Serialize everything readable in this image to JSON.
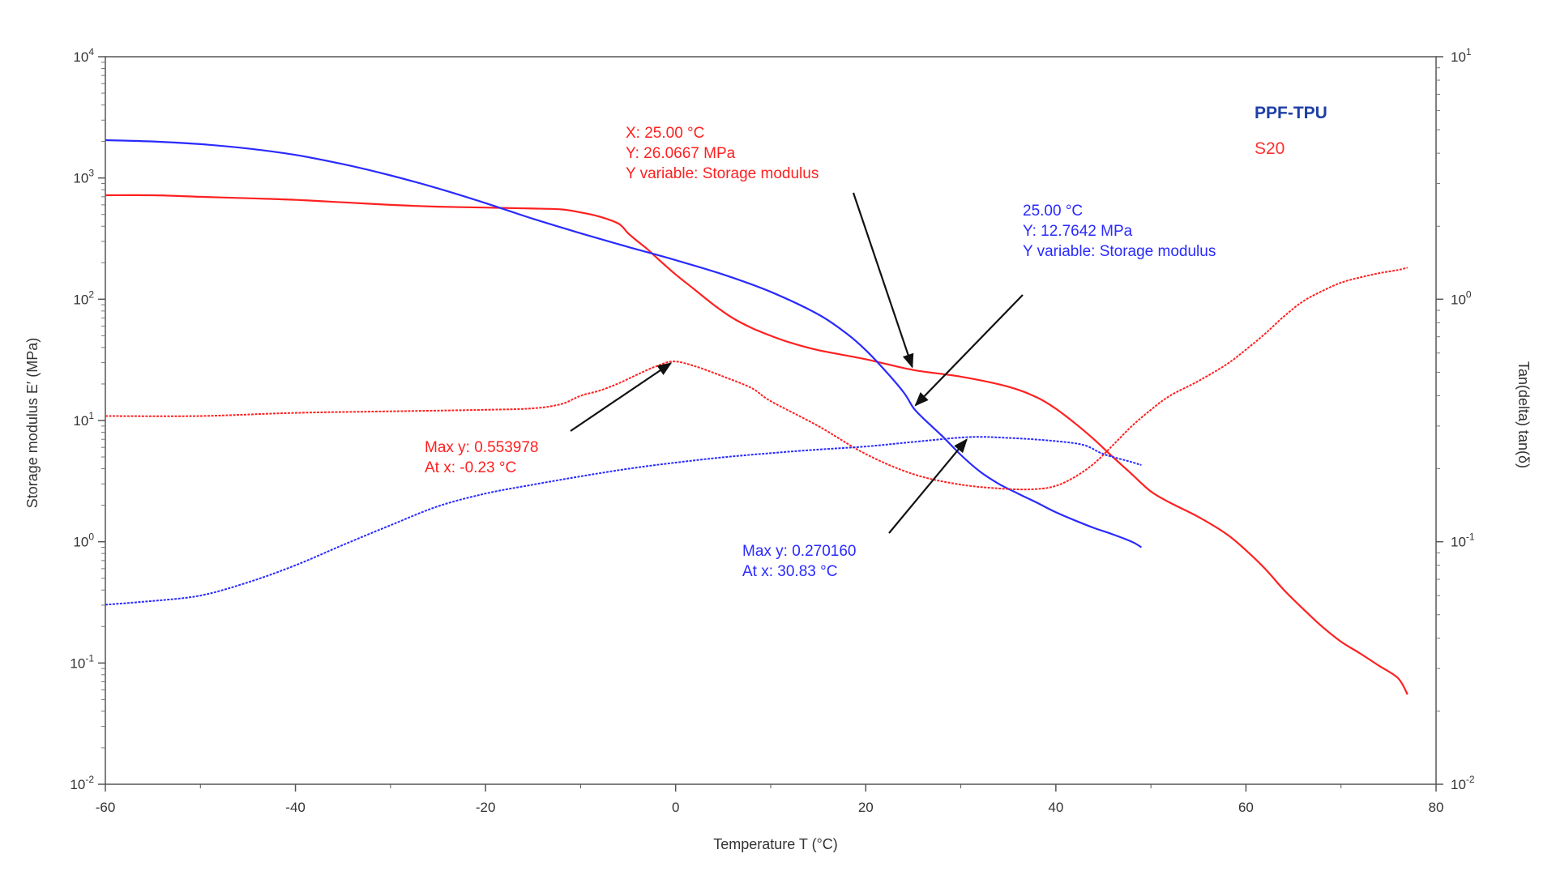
{
  "chart_data": {
    "type": "line",
    "title": "",
    "xlabel": "Temperature T (°C)",
    "ylabel_left": "Storage modulus E′ (MPa)",
    "ylabel_right": "Tan(delta) tan(δ)",
    "xlim": [
      -60,
      80
    ],
    "ylim_left": [
      0.01,
      10000
    ],
    "ylim_right": [
      0.01,
      10
    ],
    "yscale_left": "log",
    "yscale_right": "log",
    "grid": false,
    "x_ticks": [
      "-60",
      "-40",
      "-20",
      "0",
      "20",
      "40",
      "60",
      "80"
    ],
    "y_left_ticks": [
      {
        "base": "10",
        "exp": "-2",
        "value": 0.01
      },
      {
        "base": "10",
        "exp": "-1",
        "value": 0.1
      },
      {
        "base": "10",
        "exp": "0",
        "value": 1
      },
      {
        "base": "10",
        "exp": "1",
        "value": 10
      },
      {
        "base": "10",
        "exp": "2",
        "value": 100
      },
      {
        "base": "10",
        "exp": "3",
        "value": 1000
      },
      {
        "base": "10",
        "exp": "4",
        "value": 10000
      }
    ],
    "y_right_ticks": [
      {
        "base": "10",
        "exp": "-2",
        "value": 0.01
      },
      {
        "base": "10",
        "exp": "-1",
        "value": 0.1
      },
      {
        "base": "10",
        "exp": "0",
        "value": 1
      },
      {
        "base": "10",
        "exp": "1",
        "value": 10
      }
    ],
    "legend": {
      "placement": "top-right",
      "entries": [
        {
          "label": "PPF-TPU",
          "color": "#1f3fa6"
        },
        {
          "label": "S20",
          "color": "#ff3030"
        }
      ]
    },
    "series": [
      {
        "id": "s20-storage",
        "axis": "left",
        "color": "#ff2020",
        "style": "solid",
        "x": [
          -60,
          -55,
          -50,
          -45,
          -40,
          -35,
          -30,
          -25,
          -20,
          -15,
          -12,
          -10,
          -8,
          -6,
          -5,
          -4,
          -3,
          -2,
          0,
          2,
          4,
          6,
          8,
          10,
          12,
          15,
          20,
          25,
          30,
          35,
          38,
          40,
          42,
          44,
          46,
          48,
          50,
          52,
          55,
          58,
          60,
          62,
          64,
          66,
          68,
          70,
          72,
          74,
          76,
          77
        ],
        "y": [
          720,
          720,
          700,
          680,
          660,
          630,
          600,
          580,
          570,
          560,
          550,
          520,
          480,
          420,
          350,
          300,
          260,
          220,
          160,
          120,
          90,
          70,
          58,
          50,
          44,
          38,
          32,
          26.07,
          23,
          19,
          15.5,
          12.5,
          9.5,
          7,
          5,
          3.6,
          2.6,
          2.1,
          1.6,
          1.15,
          0.85,
          0.6,
          0.4,
          0.28,
          0.2,
          0.15,
          0.12,
          0.095,
          0.075,
          0.055
        ]
      },
      {
        "id": "ppf-storage",
        "axis": "left",
        "color": "#2a2aff",
        "style": "solid",
        "x": [
          -60,
          -55,
          -50,
          -45,
          -40,
          -35,
          -30,
          -25,
          -20,
          -15,
          -10,
          -5,
          0,
          5,
          10,
          15,
          18,
          20,
          22,
          24,
          25,
          26,
          28,
          30,
          32,
          34,
          36,
          38,
          40,
          42,
          44,
          46,
          48,
          49
        ],
        "y": [
          2050,
          2000,
          1900,
          1750,
          1550,
          1300,
          1050,
          820,
          620,
          460,
          350,
          270,
          210,
          160,
          115,
          75,
          52,
          38,
          26,
          17,
          12.76,
          10.5,
          7.5,
          5.2,
          3.8,
          3.0,
          2.5,
          2.1,
          1.75,
          1.5,
          1.3,
          1.15,
          1.0,
          0.9
        ]
      },
      {
        "id": "s20-tan",
        "axis": "right",
        "color": "#ff2020",
        "style": "dashed",
        "x": [
          -60,
          -50,
          -40,
          -30,
          -20,
          -15,
          -12,
          -10,
          -8,
          -6,
          -4,
          -2,
          -0.23,
          2,
          5,
          8,
          10,
          15,
          20,
          25,
          30,
          35,
          38,
          40,
          42,
          44,
          46,
          48,
          50,
          52,
          55,
          58,
          60,
          62,
          64,
          66,
          68,
          70,
          72,
          74,
          76,
          77
        ],
        "y": [
          0.33,
          0.33,
          0.34,
          0.345,
          0.35,
          0.355,
          0.37,
          0.4,
          0.42,
          0.45,
          0.49,
          0.53,
          0.554,
          0.53,
          0.48,
          0.43,
          0.38,
          0.3,
          0.23,
          0.19,
          0.172,
          0.165,
          0.165,
          0.17,
          0.185,
          0.21,
          0.25,
          0.3,
          0.35,
          0.4,
          0.46,
          0.54,
          0.62,
          0.72,
          0.85,
          0.98,
          1.08,
          1.17,
          1.23,
          1.28,
          1.32,
          1.35
        ]
      },
      {
        "id": "ppf-tan",
        "axis": "right",
        "color": "#2a2aff",
        "style": "dashed",
        "x": [
          -60,
          -55,
          -50,
          -45,
          -40,
          -35,
          -30,
          -25,
          -20,
          -15,
          -10,
          -5,
          0,
          5,
          10,
          15,
          20,
          25,
          30.83,
          35,
          40,
          43,
          45,
          48,
          49
        ],
        "y": [
          0.055,
          0.057,
          0.06,
          0.068,
          0.08,
          0.097,
          0.117,
          0.14,
          0.158,
          0.172,
          0.186,
          0.2,
          0.212,
          0.223,
          0.232,
          0.24,
          0.247,
          0.258,
          0.27,
          0.268,
          0.26,
          0.25,
          0.23,
          0.213,
          0.207
        ]
      }
    ],
    "annotations": [
      {
        "id": "anno-s20-e",
        "color": "#ff2020",
        "lines": [
          "X: 25.00 °C",
          "Y: 26.0667 MPa",
          "Y variable: Storage modulus"
        ],
        "point": {
          "x": 25.0,
          "y": 26.0667,
          "axis": "left"
        }
      },
      {
        "id": "anno-ppf-e",
        "color": "#2a2aff",
        "lines": [
          "25.00 °C",
          "Y: 12.7642 MPa",
          "Y variable: Storage modulus"
        ],
        "point": {
          "x": 25.0,
          "y": 12.7642,
          "axis": "left"
        }
      },
      {
        "id": "anno-s20-tan",
        "color": "#ff2020",
        "lines": [
          "Max y: 0.553978",
          "At x: -0.23 °C"
        ],
        "point": {
          "x": -0.23,
          "y": 0.553978,
          "axis": "right"
        }
      },
      {
        "id": "anno-ppf-tan",
        "color": "#2a2aff",
        "lines": [
          "Max y: 0.270160",
          "At x: 30.83 °C"
        ],
        "point": {
          "x": 30.83,
          "y": 0.27016,
          "axis": "right"
        }
      }
    ]
  }
}
